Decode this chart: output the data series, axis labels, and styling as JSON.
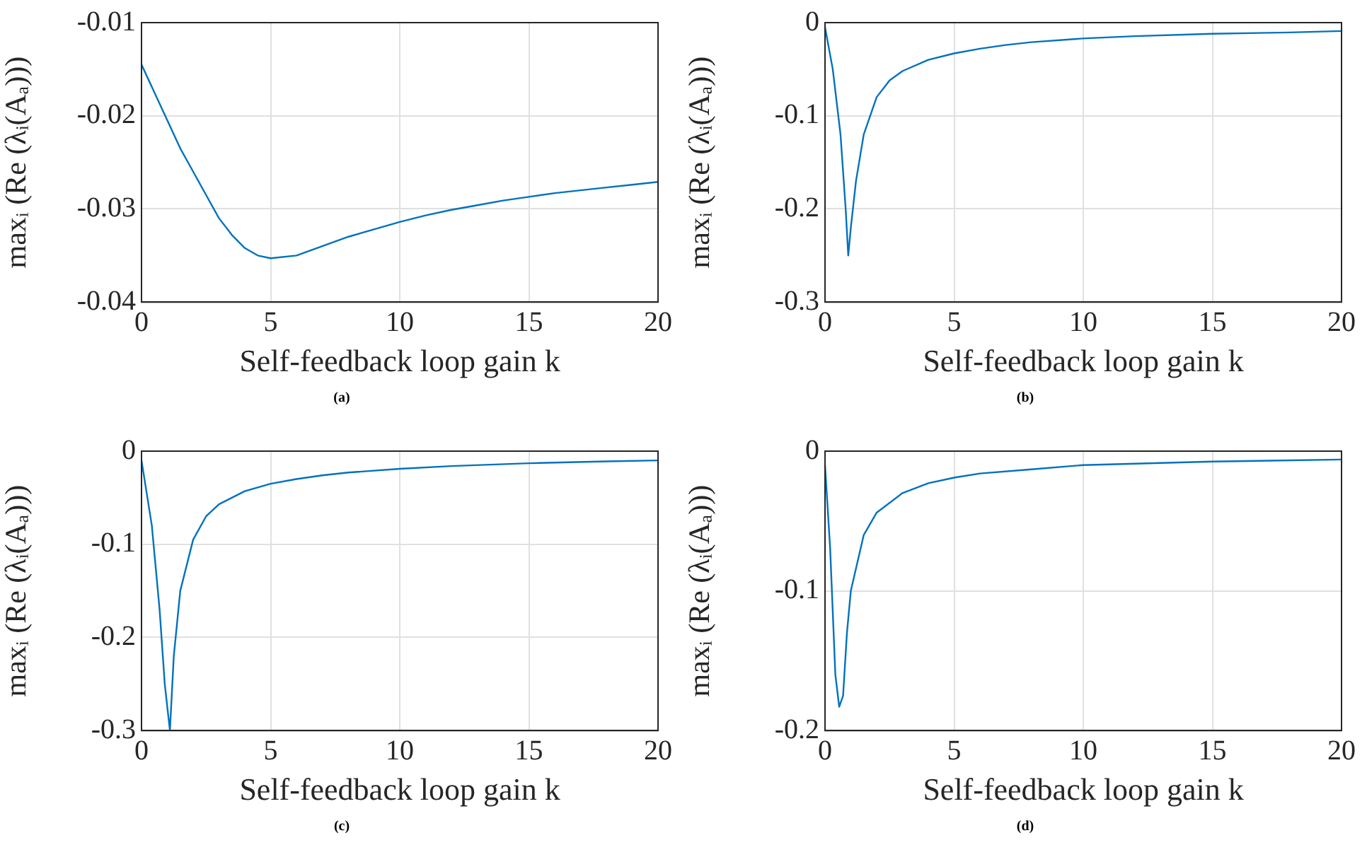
{
  "chart_data": [
    {
      "type": "line",
      "xlabel": "Self-feedback loop gain k",
      "ylabel": "maxᵢ (Re (λᵢ(Aₐ)))",
      "annotations": [
        "(a)"
      ],
      "grid": true,
      "xlim": [
        0,
        20
      ],
      "xticks": [
        0,
        5,
        10,
        15,
        20
      ],
      "ylim": [
        -0.04,
        -0.01
      ],
      "yticks": [
        -0.04,
        -0.03,
        -0.02,
        -0.01
      ],
      "x": [
        0,
        0.5,
        1,
        1.5,
        2,
        2.5,
        3,
        3.5,
        4,
        4.5,
        5,
        6,
        7,
        8,
        9,
        10,
        11,
        12,
        13,
        14,
        15,
        16,
        17,
        18,
        19,
        20
      ],
      "series": [
        {
          "color": "#0072bd",
          "values": [
            -0.0145,
            -0.0175,
            -0.0205,
            -0.0235,
            -0.026,
            -0.0285,
            -0.031,
            -0.0328,
            -0.0342,
            -0.035,
            -0.0353,
            -0.035,
            -0.034,
            -0.033,
            -0.0322,
            -0.0314,
            -0.0307,
            -0.0301,
            -0.0296,
            -0.0291,
            -0.0287,
            -0.0283,
            -0.028,
            -0.0277,
            -0.0274,
            -0.0271
          ]
        }
      ]
    },
    {
      "type": "line",
      "xlabel": "Self-feedback loop gain k",
      "ylabel": "maxᵢ (Re (λᵢ(Aₐ)))",
      "annotations": [
        "(b)"
      ],
      "grid": true,
      "xlim": [
        0,
        20
      ],
      "xticks": [
        0,
        5,
        10,
        15,
        20
      ],
      "ylim": [
        -0.3,
        0
      ],
      "yticks": [
        -0.3,
        -0.2,
        -0.1,
        0
      ],
      "x": [
        0,
        0.3,
        0.6,
        0.8,
        0.9,
        1.0,
        1.2,
        1.5,
        2,
        2.5,
        3,
        4,
        5,
        6,
        7,
        8,
        10,
        12,
        15,
        18,
        20
      ],
      "series": [
        {
          "color": "#0072bd",
          "values": [
            -0.005,
            -0.05,
            -0.12,
            -0.2,
            -0.25,
            -0.22,
            -0.17,
            -0.12,
            -0.08,
            -0.062,
            -0.052,
            -0.04,
            -0.033,
            -0.028,
            -0.024,
            -0.021,
            -0.017,
            -0.0145,
            -0.012,
            -0.0105,
            -0.009
          ]
        }
      ]
    },
    {
      "type": "line",
      "xlabel": "Self-feedback loop gain k",
      "ylabel": "maxᵢ (Re (λᵢ(Aₐ)))",
      "annotations": [
        "(c)"
      ],
      "grid": true,
      "xlim": [
        0,
        20
      ],
      "xticks": [
        0,
        5,
        10,
        15,
        20
      ],
      "ylim": [
        -0.3,
        0
      ],
      "yticks": [
        -0.3,
        -0.2,
        -0.1,
        0
      ],
      "x": [
        0,
        0.4,
        0.7,
        0.9,
        1.1,
        1.25,
        1.5,
        2,
        2.5,
        3,
        4,
        5,
        6,
        7,
        8,
        10,
        12,
        15,
        18,
        20
      ],
      "series": [
        {
          "color": "#0072bd",
          "values": [
            -0.01,
            -0.08,
            -0.17,
            -0.25,
            -0.3,
            -0.22,
            -0.15,
            -0.095,
            -0.07,
            -0.057,
            -0.043,
            -0.035,
            -0.03,
            -0.026,
            -0.023,
            -0.019,
            -0.016,
            -0.013,
            -0.011,
            -0.01
          ]
        }
      ]
    },
    {
      "type": "line",
      "xlabel": "Self-feedback loop gain k",
      "ylabel": "maxᵢ (Re (λᵢ(Aₐ)))",
      "annotations": [
        "(d)"
      ],
      "grid": true,
      "xlim": [
        0,
        20
      ],
      "xticks": [
        0,
        5,
        10,
        15,
        20
      ],
      "ylim": [
        -0.2,
        0
      ],
      "yticks": [
        -0.2,
        -0.1,
        0
      ],
      "x": [
        0,
        0.2,
        0.4,
        0.55,
        0.7,
        0.85,
        1,
        1.5,
        2,
        3,
        4,
        5,
        6,
        8,
        10,
        12,
        15,
        20
      ],
      "series": [
        {
          "color": "#0072bd",
          "values": [
            -0.01,
            -0.07,
            -0.16,
            -0.183,
            -0.175,
            -0.13,
            -0.1,
            -0.06,
            -0.044,
            -0.03,
            -0.023,
            -0.019,
            -0.016,
            -0.013,
            -0.01,
            -0.009,
            -0.0075,
            -0.006
          ]
        }
      ]
    }
  ]
}
